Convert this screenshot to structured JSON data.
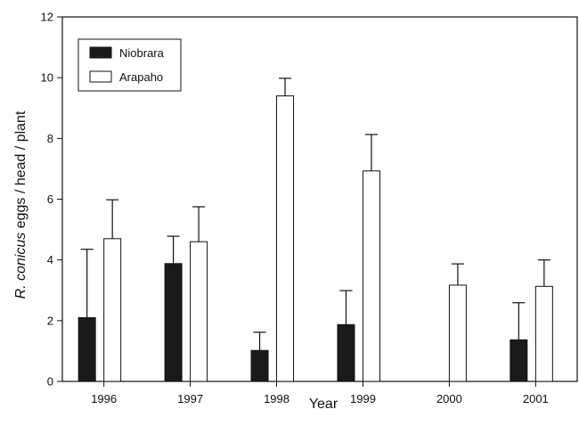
{
  "chart_data": {
    "type": "bar",
    "categories": [
      "1996",
      "1997",
      "1998",
      "1999",
      "2000",
      "2001"
    ],
    "series": [
      {
        "name": "Niobrara",
        "color": "#1a1a1a",
        "values": [
          2.1,
          3.88,
          1.02,
          1.87,
          null,
          1.37
        ],
        "errors": [
          2.25,
          0.9,
          0.6,
          1.12,
          null,
          1.22
        ]
      },
      {
        "name": "Arapaho",
        "color": "#ffffff",
        "values": [
          4.7,
          4.6,
          9.4,
          6.93,
          3.17,
          3.13
        ],
        "errors": [
          1.28,
          1.15,
          0.58,
          1.2,
          0.7,
          0.87
        ]
      }
    ],
    "xlabel": "Year",
    "ylabel_italic": "R. conicus",
    "ylabel_rest": " eggs / head / plant",
    "ylim": [
      0,
      12
    ],
    "yticks": [
      "0",
      "2",
      "4",
      "6",
      "8",
      "10",
      "12"
    ],
    "legend_position": "top-left",
    "grid": false
  }
}
